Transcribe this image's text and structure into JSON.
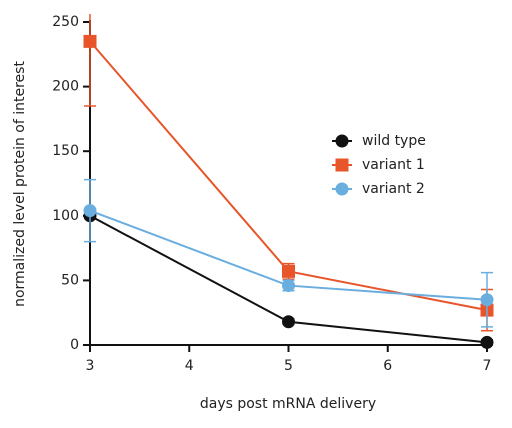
{
  "chart_data": {
    "type": "line",
    "x_label": "days post mRNA delivery",
    "y_label": "normalized level protein of interest",
    "x": [
      3,
      5,
      7
    ],
    "xlim": [
      3,
      7
    ],
    "xticks": [
      3,
      4,
      5,
      6,
      7
    ],
    "ylim": [
      0,
      250
    ],
    "yticks": [
      0,
      50,
      100,
      150,
      200,
      250
    ],
    "legend": "right",
    "series": [
      {
        "name": "wild type",
        "color": "#111111",
        "marker": "circle",
        "values": [
          100,
          18,
          2
        ],
        "errors": [
          2,
          2,
          2
        ]
      },
      {
        "name": "variant 1",
        "color": "#e8552a",
        "marker": "square",
        "values": [
          235,
          57,
          27
        ],
        "errors": [
          50,
          6,
          16
        ]
      },
      {
        "name": "variant 2",
        "color": "#6aaee0",
        "marker": "circle",
        "values": [
          104,
          46,
          35
        ],
        "errors": [
          24,
          4,
          21
        ]
      }
    ]
  }
}
